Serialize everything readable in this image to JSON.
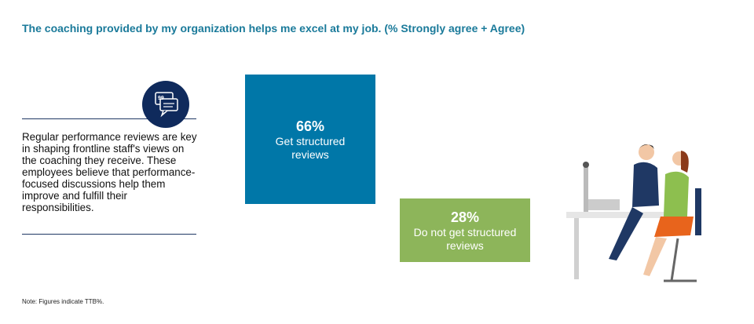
{
  "header": {
    "title": "The coaching provided by my organization helps me excel at my job. (% Strongly agree + Agree)"
  },
  "insight": {
    "text": "Regular performance reviews are key in shaping frontline staff's views on the coaching they receive. These employees believe that performance-focused discussions help them improve and fulfill their responsibilities."
  },
  "stats": [
    {
      "value": "66%",
      "label": "Get structured reviews"
    },
    {
      "value": "28%",
      "label": "Do not get structured reviews"
    }
  ],
  "footer": {
    "note": "Note: Figures indicate TTB%."
  }
}
